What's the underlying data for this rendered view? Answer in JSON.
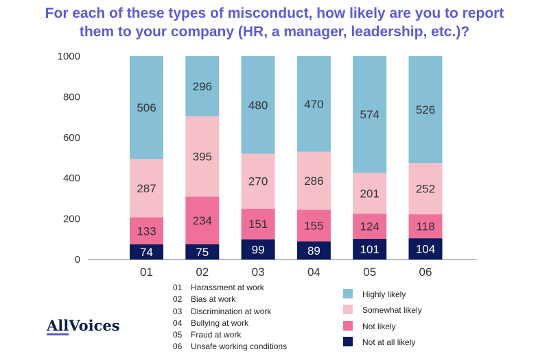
{
  "title_lines": [
    "For each of these types of misconduct, how likely are you to report",
    "them to your company (HR, a manager, leadership, etc.)?"
  ],
  "chart_data": {
    "type": "bar",
    "stacked": true,
    "categories": [
      "01",
      "02",
      "03",
      "04",
      "05",
      "06"
    ],
    "ylim": [
      0,
      1000
    ],
    "yticks": [
      0,
      200,
      400,
      600,
      800,
      1000
    ],
    "grid": false,
    "series": [
      {
        "name": "Not at all likely",
        "color": "#0a1a5c",
        "label_color": "#ffffff",
        "values": [
          74,
          75,
          99,
          89,
          101,
          104
        ]
      },
      {
        "name": "Not likely",
        "color": "#ef7098",
        "label_color": "#333333",
        "values": [
          133,
          234,
          151,
          155,
          124,
          118
        ]
      },
      {
        "name": "Somewhat likely",
        "color": "#f6c0c8",
        "label_color": "#333333",
        "values": [
          287,
          395,
          270,
          286,
          201,
          252
        ]
      },
      {
        "name": "Highly likely",
        "color": "#86bfd6",
        "label_color": "#333333",
        "values": [
          506,
          296,
          480,
          470,
          574,
          526
        ]
      }
    ]
  },
  "category_legend": [
    {
      "code": "01",
      "label": "Harassment at work"
    },
    {
      "code": "02",
      "label": "Bias at work"
    },
    {
      "code": "03",
      "label": "Discrimination at work"
    },
    {
      "code": "04",
      "label": "Bullying at work"
    },
    {
      "code": "05",
      "label": "Fraud at work"
    },
    {
      "code": "06",
      "label": "Unsafe working conditions"
    }
  ],
  "series_legend": [
    {
      "label": "Highly likely",
      "color": "#86bfd6"
    },
    {
      "label": "Somewhat likely",
      "color": "#f6c0c8"
    },
    {
      "label": "Not likely",
      "color": "#ef7098"
    },
    {
      "label": "Not at all likely",
      "color": "#0a1a5c"
    }
  ],
  "logo": {
    "part1": "All",
    "part2": "Voices"
  }
}
